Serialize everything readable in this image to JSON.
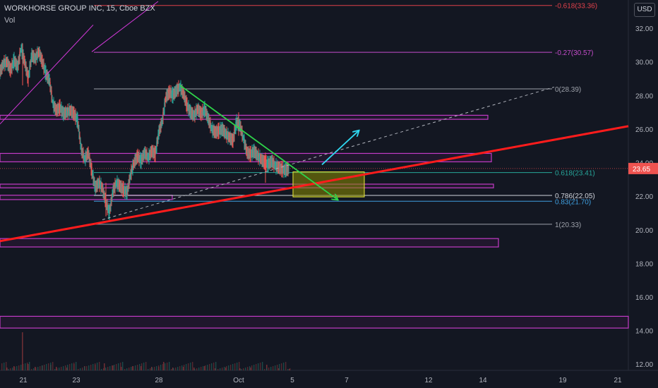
{
  "header": {
    "title": "WORKHORSE GROUP INC, 15, Cboe BZX",
    "sub": "Vol"
  },
  "currency": "USD",
  "chart_data": {
    "type": "candlestick",
    "symbol": "WORKHORSE GROUP INC",
    "interval": "15",
    "exchange": "Cboe BZX",
    "ylim": [
      11.8,
      33.6
    ],
    "y_ticks": [
      12,
      14,
      16,
      18,
      20,
      22,
      24,
      26,
      28,
      30,
      32
    ],
    "x_ticks": [
      "21",
      "23",
      "28",
      "Oct",
      "5",
      "7",
      "12",
      "14",
      "19",
      "21"
    ],
    "last_price": "23.65",
    "price_path": [
      [
        0,
        29.4
      ],
      [
        5,
        29.9
      ],
      [
        10,
        30.0
      ],
      [
        15,
        29.5
      ],
      [
        20,
        30.1
      ],
      [
        25,
        29.7
      ],
      [
        30,
        30.8
      ],
      [
        35,
        30.0
      ],
      [
        40,
        29.0
      ],
      [
        45,
        30.4
      ],
      [
        50,
        30.2
      ],
      [
        55,
        30.6
      ],
      [
        60,
        30.0
      ],
      [
        65,
        29.3
      ],
      [
        70,
        28.9
      ],
      [
        75,
        27.5
      ],
      [
        80,
        27.1
      ],
      [
        85,
        27.3
      ],
      [
        90,
        26.9
      ],
      [
        95,
        27.0
      ],
      [
        100,
        27.1
      ],
      [
        105,
        26.9
      ],
      [
        110,
        26.5
      ],
      [
        115,
        24.8
      ],
      [
        120,
        24.2
      ],
      [
        125,
        24.6
      ],
      [
        130,
        23.5
      ],
      [
        135,
        22.5
      ],
      [
        140,
        22.8
      ],
      [
        145,
        22.5
      ],
      [
        150,
        21.6
      ],
      [
        155,
        21.0
      ],
      [
        160,
        22.3
      ],
      [
        165,
        22.8
      ],
      [
        170,
        22.6
      ],
      [
        175,
        22.4
      ],
      [
        180,
        22.2
      ],
      [
        185,
        23.3
      ],
      [
        190,
        24.0
      ],
      [
        195,
        24.4
      ],
      [
        200,
        24.1
      ],
      [
        205,
        24.6
      ],
      [
        210,
        24.3
      ],
      [
        215,
        24.7
      ],
      [
        220,
        24.5
      ],
      [
        225,
        25.8
      ],
      [
        230,
        26.5
      ],
      [
        235,
        27.9
      ],
      [
        240,
        28.2
      ],
      [
        245,
        28.0
      ],
      [
        250,
        28.3
      ],
      [
        255,
        28.5
      ],
      [
        260,
        28.1
      ],
      [
        265,
        27.4
      ],
      [
        270,
        27.0
      ],
      [
        275,
        26.8
      ],
      [
        280,
        27.2
      ],
      [
        285,
        26.9
      ],
      [
        290,
        27.2
      ],
      [
        295,
        26.6
      ],
      [
        300,
        26.0
      ],
      [
        305,
        25.8
      ],
      [
        310,
        25.9
      ],
      [
        315,
        26.0
      ],
      [
        320,
        25.7
      ],
      [
        325,
        25.5
      ],
      [
        330,
        25.3
      ],
      [
        335,
        26.4
      ],
      [
        340,
        26.2
      ],
      [
        345,
        25.4
      ],
      [
        350,
        24.6
      ],
      [
        355,
        24.5
      ],
      [
        360,
        24.7
      ],
      [
        365,
        24.4
      ],
      [
        370,
        24.2
      ],
      [
        375,
        24.0
      ],
      [
        380,
        23.9
      ],
      [
        385,
        24.1
      ],
      [
        390,
        23.8
      ],
      [
        395,
        23.7
      ],
      [
        400,
        23.6
      ],
      [
        405,
        23.55
      ],
      [
        410,
        23.65
      ]
    ],
    "volume_path": [
      [
        10,
        4
      ],
      [
        20,
        6
      ],
      [
        32,
        54
      ],
      [
        40,
        9
      ],
      [
        50,
        5
      ],
      [
        60,
        7
      ],
      [
        72,
        8
      ],
      [
        80,
        5
      ],
      [
        95,
        4
      ],
      [
        105,
        9
      ],
      [
        120,
        6
      ],
      [
        135,
        8
      ],
      [
        148,
        10
      ],
      [
        160,
        7
      ],
      [
        172,
        5
      ],
      [
        188,
        6
      ],
      [
        200,
        6
      ],
      [
        215,
        5
      ],
      [
        225,
        5
      ],
      [
        232,
        12
      ],
      [
        245,
        4
      ],
      [
        260,
        5
      ],
      [
        275,
        4
      ],
      [
        290,
        6
      ],
      [
        305,
        3
      ],
      [
        320,
        4
      ],
      [
        340,
        3
      ],
      [
        355,
        4
      ],
      [
        378,
        8
      ],
      [
        395,
        3
      ],
      [
        410,
        2
      ]
    ],
    "levels": [
      {
        "label": "-0.618(33.36)",
        "value": 33.36,
        "color": "#e0404a"
      },
      {
        "label": "-0.27(30.57)",
        "value": 30.57,
        "color": "#c54ccb"
      },
      {
        "label": "0(28.39)",
        "value": 28.39,
        "color": "#9ea2ab"
      },
      {
        "label": "0.618(23.41)",
        "value": 23.41,
        "color": "#26a69a"
      },
      {
        "label": "0.786(22.05)",
        "value": 22.05,
        "color": "#d1d4dc"
      },
      {
        "label": "0.83(21.70)",
        "value": 21.7,
        "color": "#3f9fe0"
      },
      {
        "label": "1(20.33)",
        "value": 20.33,
        "color": "#9ea2ab"
      }
    ],
    "zones": [
      {
        "top": 26.82,
        "bottom": 26.58,
        "x_start": 0,
        "x_end": 691,
        "color": "#c33bc6"
      },
      {
        "top": 24.55,
        "bottom": 24.05,
        "x_start": 0,
        "x_end": 696,
        "color": "#c33bc6"
      },
      {
        "top": 22.72,
        "bottom": 22.5,
        "x_start": 0,
        "x_end": 699,
        "color": "#c33bc6"
      },
      {
        "top": 22.06,
        "bottom": 21.8,
        "x_start": 0,
        "x_end": 244,
        "color": "#c33bc6"
      },
      {
        "top": 19.48,
        "bottom": 18.98,
        "x_start": 0,
        "x_end": 706,
        "color": "#c33bc6"
      },
      {
        "top": 14.85,
        "bottom": 14.15,
        "x_start": 0,
        "x_end": 890,
        "color": "#c33bc6"
      }
    ],
    "trendlines": [
      {
        "name": "red-support",
        "from": [
          0,
          19.33
        ],
        "to": [
          890,
          26.17
        ],
        "color": "#ff1c1c",
        "width": 3
      },
      {
        "name": "dashed-projection",
        "from": [
          145,
          20.6
        ],
        "to": [
          785,
          28.5
        ],
        "color": "#b2b5be",
        "width": 1,
        "dash": true
      },
      {
        "name": "green-resistance",
        "from": [
          255,
          28.6
        ],
        "to": [
          478,
          21.8
        ],
        "color": "#2ed34a",
        "width": 1.8,
        "arrow": true
      },
      {
        "name": "cyan-breakout",
        "from": [
          456,
          23.88
        ],
        "to": [
          508,
          25.9
        ],
        "color": "#2fd7f0",
        "width": 1.8,
        "arrow": true
      },
      {
        "name": "magenta-channel-1",
        "from": [
          0,
          26.3
        ],
        "to": [
          132,
          32.2
        ],
        "color": "#d238d8",
        "width": 1
      },
      {
        "name": "magenta-channel-2",
        "from": [
          130,
          30.6
        ],
        "to": [
          224,
          33.6
        ],
        "color": "#d238d8",
        "width": 1
      }
    ],
    "box": {
      "top": 23.45,
      "bottom": 21.96,
      "x_start": 415,
      "x_end": 516,
      "fill": "#8a8a00",
      "stroke": "#e8e83a"
    },
    "dotted_price": 23.65
  }
}
